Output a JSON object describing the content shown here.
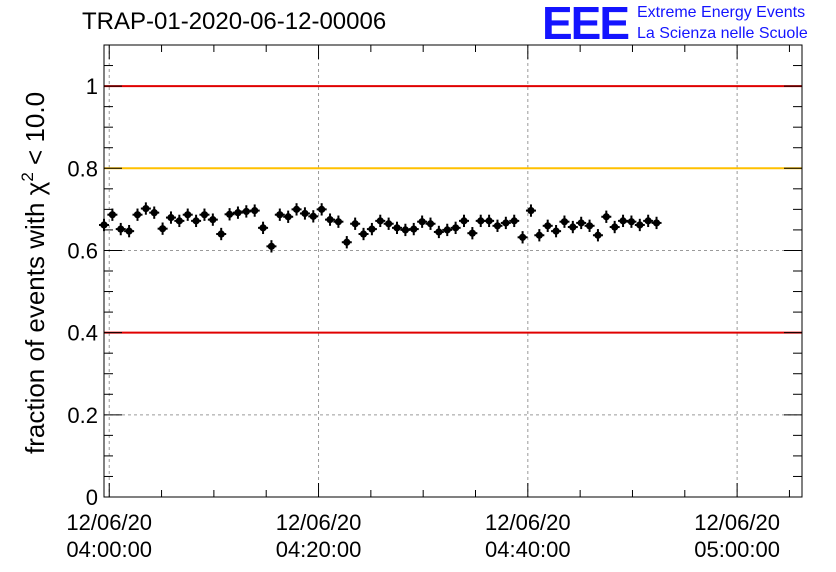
{
  "title": "TRAP-01-2020-06-12-00006",
  "logo": {
    "mark": "EEE",
    "line1": "Extreme Energy Events",
    "line2": "La Scienza nelle Scuole",
    "color": "#1414ff"
  },
  "chart_data": {
    "type": "scatter",
    "ylabel_main": "fraction of events with ",
    "ylabel_chi": "χ",
    "ylabel_sup": "2",
    "ylabel_tail": " < 10.0",
    "ylim": [
      0,
      1.1
    ],
    "yticks": [
      0,
      0.2,
      0.4,
      0.6,
      0.8,
      1
    ],
    "ytick_labels": [
      "0",
      "0.2",
      "0.4",
      "0.6",
      "0.8",
      "1"
    ],
    "xlim_minutes": [
      -0.5,
      66.2
    ],
    "xticks": [
      {
        "minute": 0,
        "line1": "12/06/20",
        "line2": "04:00:00"
      },
      {
        "minute": 20,
        "line1": "12/06/20",
        "line2": "04:20:00"
      },
      {
        "minute": 40,
        "line1": "12/06/20",
        "line2": "04:40:00"
      },
      {
        "minute": 60,
        "line1": "12/06/20",
        "line2": "05:00:00"
      }
    ],
    "grid": true,
    "reference_lines": [
      {
        "y": 1.0,
        "color": "#e00000"
      },
      {
        "y": 0.8,
        "color": "#ffc000"
      },
      {
        "y": 0.4,
        "color": "#e00000"
      }
    ],
    "point_color": "#000000",
    "x_start_minute": -0.5,
    "x_step_minutes": 0.8,
    "y_error": 0.015,
    "y": [
      0.662,
      0.687,
      0.652,
      0.647,
      0.687,
      0.702,
      0.692,
      0.653,
      0.68,
      0.672,
      0.687,
      0.672,
      0.687,
      0.675,
      0.64,
      0.688,
      0.692,
      0.695,
      0.697,
      0.655,
      0.61,
      0.687,
      0.682,
      0.7,
      0.69,
      0.683,
      0.7,
      0.675,
      0.67,
      0.62,
      0.665,
      0.64,
      0.652,
      0.672,
      0.665,
      0.655,
      0.65,
      0.652,
      0.67,
      0.665,
      0.645,
      0.65,
      0.655,
      0.672,
      0.642,
      0.672,
      0.672,
      0.66,
      0.667,
      0.672,
      0.632,
      0.697,
      0.637,
      0.66,
      0.647,
      0.67,
      0.657,
      0.667,
      0.66,
      0.637,
      0.682,
      0.657,
      0.672,
      0.67,
      0.662,
      0.672,
      0.667
    ]
  }
}
